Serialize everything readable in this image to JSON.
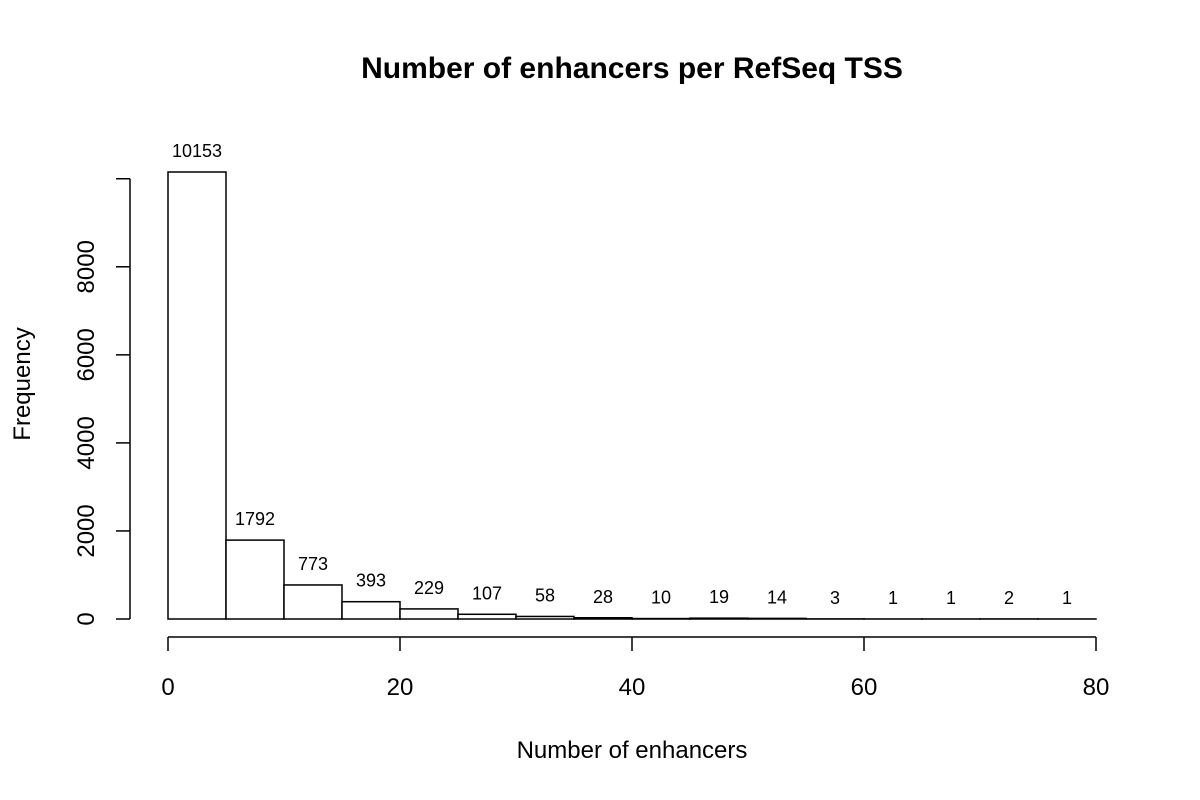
{
  "chart_data": {
    "type": "bar",
    "title": "Number of enhancers per RefSeq TSS",
    "xlabel": "Number of enhancers",
    "ylabel": "Frequency",
    "bins": [
      {
        "start": 0,
        "end": 5,
        "count": 10153,
        "label": "10153"
      },
      {
        "start": 5,
        "end": 10,
        "count": 1792,
        "label": "1792"
      },
      {
        "start": 10,
        "end": 15,
        "count": 773,
        "label": "773"
      },
      {
        "start": 15,
        "end": 20,
        "count": 393,
        "label": "393"
      },
      {
        "start": 20,
        "end": 25,
        "count": 229,
        "label": "229"
      },
      {
        "start": 25,
        "end": 30,
        "count": 107,
        "label": "107"
      },
      {
        "start": 30,
        "end": 35,
        "count": 58,
        "label": "58"
      },
      {
        "start": 35,
        "end": 40,
        "count": 28,
        "label": "28"
      },
      {
        "start": 40,
        "end": 45,
        "count": 10,
        "label": "10"
      },
      {
        "start": 45,
        "end": 50,
        "count": 19,
        "label": "19"
      },
      {
        "start": 50,
        "end": 55,
        "count": 14,
        "label": "14"
      },
      {
        "start": 55,
        "end": 60,
        "count": 3,
        "label": "3"
      },
      {
        "start": 60,
        "end": 65,
        "count": 1,
        "label": "1"
      },
      {
        "start": 65,
        "end": 70,
        "count": 1,
        "label": "1"
      },
      {
        "start": 70,
        "end": 75,
        "count": 2,
        "label": "2"
      },
      {
        "start": 75,
        "end": 80,
        "count": 1,
        "label": "1"
      }
    ],
    "xlim": [
      0,
      80
    ],
    "ylim": [
      0,
      10153
    ],
    "x_ticks": [
      0,
      20,
      40,
      60,
      80
    ],
    "x_tick_labels": [
      "0",
      "20",
      "40",
      "60",
      "80"
    ],
    "y_ticks": [
      0,
      2000,
      4000,
      6000,
      8000,
      10000
    ],
    "y_tick_labels": [
      "0",
      "2000",
      "4000",
      "6000",
      "8000",
      ""
    ],
    "grid": false,
    "legend": false
  }
}
